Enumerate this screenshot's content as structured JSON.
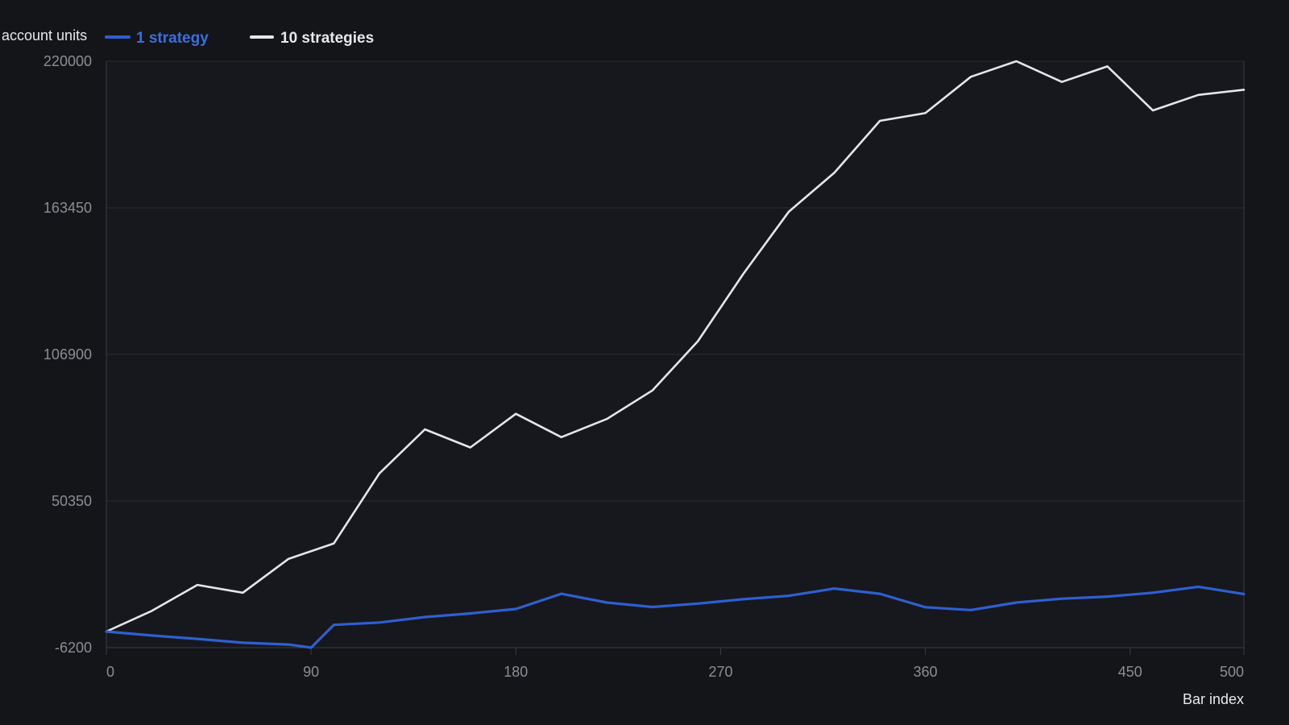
{
  "chart_data": {
    "type": "line",
    "title": "",
    "ylabel": "account units",
    "xlabel": "Bar index",
    "xlim": [
      0,
      500
    ],
    "ylim": [
      -6200,
      220000
    ],
    "x_ticks": [
      "0",
      "90",
      "180",
      "270",
      "360",
      "450",
      "500"
    ],
    "x_tick_values": [
      0,
      90,
      180,
      270,
      360,
      450,
      500
    ],
    "y_ticks": [
      "220000",
      "163450",
      "106900",
      "50350",
      "-6200"
    ],
    "y_tick_values": [
      220000,
      163450,
      106900,
      50350,
      -6200
    ],
    "grid": true,
    "legend_position": "top-left",
    "colors": {
      "background": "#141519",
      "plot_background": "#17181d",
      "grid": "#2a2b31",
      "axis": "#3a3b42",
      "tick_text": "#8c8d93",
      "text": "#e8e8ea"
    },
    "series": [
      {
        "name": "1 strategy",
        "color": "#2f5fd0",
        "x": [
          0,
          20,
          40,
          60,
          80,
          90,
          100,
          120,
          140,
          160,
          180,
          200,
          220,
          240,
          260,
          280,
          300,
          320,
          340,
          360,
          380,
          400,
          420,
          440,
          460,
          480,
          500
        ],
        "y": [
          0,
          -1500,
          -2800,
          -4300,
          -5000,
          -6200,
          2600,
          3500,
          5600,
          7000,
          8700,
          14600,
          11200,
          9500,
          10800,
          12500,
          13800,
          16600,
          14600,
          9400,
          8300,
          11200,
          12700,
          13500,
          15000,
          17300,
          14500
        ]
      },
      {
        "name": "10 strategies",
        "color": "#e6e6e8",
        "x": [
          0,
          20,
          40,
          60,
          80,
          100,
          120,
          140,
          160,
          180,
          200,
          220,
          240,
          260,
          280,
          300,
          320,
          340,
          360,
          380,
          400,
          420,
          440,
          460,
          480,
          500
        ],
        "y": [
          0,
          8000,
          18000,
          15000,
          28000,
          34000,
          61000,
          78000,
          71000,
          84000,
          75000,
          82000,
          93000,
          112000,
          138000,
          162000,
          177000,
          197000,
          200000,
          214000,
          220000,
          212000,
          218000,
          201000,
          207000,
          209000
        ]
      }
    ]
  }
}
